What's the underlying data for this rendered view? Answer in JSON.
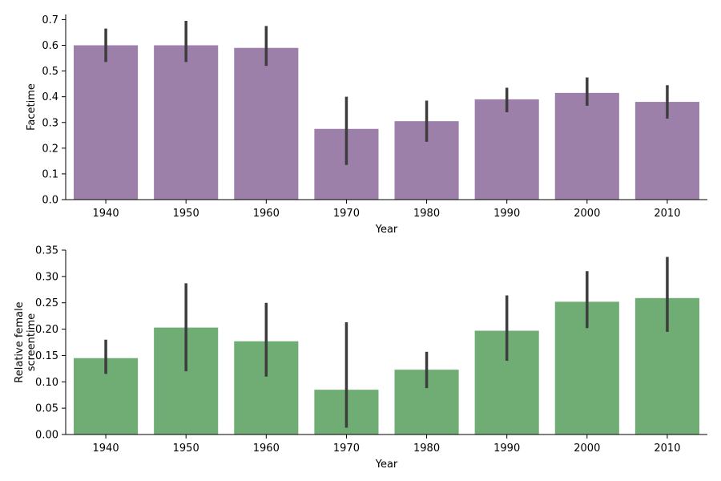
{
  "chart_data": [
    {
      "type": "bar",
      "categories": [
        "1940",
        "1950",
        "1960",
        "1970",
        "1980",
        "1990",
        "2000",
        "2010"
      ],
      "values": [
        0.6,
        0.6,
        0.59,
        0.275,
        0.305,
        0.39,
        0.415,
        0.38
      ],
      "error_low": [
        0.535,
        0.535,
        0.52,
        0.135,
        0.225,
        0.34,
        0.365,
        0.315
      ],
      "error_high": [
        0.665,
        0.695,
        0.675,
        0.4,
        0.385,
        0.435,
        0.475,
        0.445
      ],
      "xlabel": "Year",
      "ylabel": [
        "Facetime"
      ],
      "ylim": [
        0,
        0.72
      ],
      "yticks": [
        "0.0",
        "0.1",
        "0.2",
        "0.3",
        "0.4",
        "0.5",
        "0.6",
        "0.7"
      ],
      "bar_color": "#9d80aa"
    },
    {
      "type": "bar",
      "categories": [
        "1940",
        "1950",
        "1960",
        "1970",
        "1980",
        "1990",
        "2000",
        "2010"
      ],
      "values": [
        0.145,
        0.203,
        0.177,
        0.085,
        0.123,
        0.197,
        0.252,
        0.259
      ],
      "error_low": [
        0.115,
        0.12,
        0.11,
        0.013,
        0.088,
        0.14,
        0.202,
        0.195
      ],
      "error_high": [
        0.18,
        0.287,
        0.25,
        0.213,
        0.157,
        0.264,
        0.31,
        0.337
      ],
      "xlabel": "Year",
      "ylabel": [
        "Relative female",
        "screentime"
      ],
      "ylim": [
        0,
        0.35
      ],
      "yticks": [
        "0.00",
        "0.05",
        "0.10",
        "0.15",
        "0.20",
        "0.25",
        "0.30",
        "0.35"
      ],
      "bar_color": "#6fad74"
    }
  ],
  "colors": {
    "error_bar": "#3d3d3d"
  }
}
